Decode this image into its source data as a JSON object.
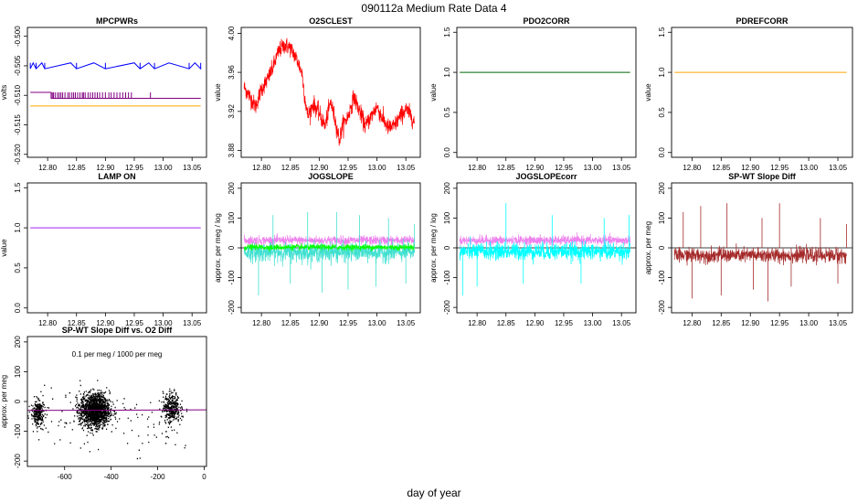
{
  "figure": {
    "title": "090112a   Medium Rate Data 4",
    "xlabel": "day of year"
  },
  "chart_data": [
    {
      "type": "line",
      "title": "MPCPWRs",
      "ylabel": "volts",
      "xlim": [
        12.765,
        13.075
      ],
      "ylim": [
        -0.5205,
        -0.4985
      ],
      "x_ticks": [
        12.8,
        12.85,
        12.9,
        12.95,
        13.0,
        13.05
      ],
      "x_tick_labels": [
        "12.80",
        "12.85",
        "12.90",
        "12.95",
        "13.00",
        "13.05"
      ],
      "y_ticks": [
        -0.52,
        -0.515,
        -0.51,
        -0.505,
        -0.5
      ],
      "y_tick_labels": [
        "-0.520",
        "-0.515",
        "-0.510",
        "-0.505",
        "-0.500"
      ],
      "series": [
        {
          "color": "#0000ff",
          "base": -0.5045,
          "alt": -0.5055,
          "style": "blue-steps",
          "x": [
            12.77,
            12.775,
            12.78,
            12.79,
            12.795,
            12.84,
            12.85,
            12.88,
            12.9,
            12.95,
            12.96,
            12.975,
            12.985,
            13.01,
            13.045,
            13.055,
            13.065
          ]
        },
        {
          "color": "#800080",
          "base": -0.5105,
          "alt": -0.5095,
          "style": "purple-spikes",
          "x": [
            12.808,
            12.81,
            12.813,
            12.817,
            12.82,
            12.823,
            12.826,
            12.83,
            12.835,
            12.838,
            12.842,
            12.845,
            12.848,
            12.852,
            12.856,
            12.86,
            12.862,
            12.865,
            12.87,
            12.874,
            12.878,
            12.882,
            12.886,
            12.89,
            12.895,
            12.9,
            12.906,
            12.91,
            12.915,
            12.92,
            12.925,
            12.93,
            12.935,
            12.94,
            12.945,
            12.978
          ]
        },
        {
          "color": "#ffa500",
          "base": -0.5118,
          "style": "flat"
        }
      ]
    },
    {
      "type": "line",
      "title": "O2SCLEST",
      "ylabel": "value",
      "xlim": [
        12.765,
        13.075
      ],
      "ylim": [
        3.873,
        4.006
      ],
      "x_ticks": [
        12.8,
        12.85,
        12.9,
        12.95,
        13.0,
        13.05
      ],
      "x_tick_labels": [
        "12.80",
        "12.85",
        "12.90",
        "12.95",
        "13.00",
        "13.05"
      ],
      "y_ticks": [
        3.88,
        3.92,
        3.96,
        4.0
      ],
      "y_tick_labels": [
        "3.88",
        "3.92",
        "3.96",
        "4.00"
      ],
      "series": [
        {
          "color": "#ff0000",
          "style": "noisy-band",
          "noise": 0.008,
          "x": [
            12.77,
            12.78,
            12.79,
            12.8,
            12.81,
            12.82,
            12.83,
            12.84,
            12.85,
            12.86,
            12.87,
            12.875,
            12.88,
            12.89,
            12.9,
            12.91,
            12.92,
            12.93,
            12.935,
            12.94,
            12.95,
            12.96,
            12.97,
            12.98,
            12.99,
            13.0,
            13.01,
            13.02,
            13.03,
            13.04,
            13.05,
            13.06,
            13.065
          ],
          "y": [
            3.945,
            3.935,
            3.925,
            3.943,
            3.952,
            3.965,
            3.982,
            3.988,
            3.985,
            3.975,
            3.96,
            3.935,
            3.915,
            3.928,
            3.918,
            3.905,
            3.93,
            3.905,
            3.89,
            3.905,
            3.915,
            3.935,
            3.92,
            3.905,
            3.915,
            3.925,
            3.912,
            3.903,
            3.905,
            3.915,
            3.922,
            3.915,
            3.908
          ]
        }
      ]
    },
    {
      "type": "line",
      "title": "PDO2CORR",
      "ylabel": "value",
      "xlim": [
        12.765,
        13.075
      ],
      "ylim": [
        -0.06,
        1.56
      ],
      "x_ticks": [
        12.8,
        12.85,
        12.9,
        12.95,
        13.0,
        13.05
      ],
      "x_tick_labels": [
        "12.80",
        "12.85",
        "12.90",
        "12.95",
        "13.00",
        "13.05"
      ],
      "y_ticks": [
        0.0,
        0.5,
        1.0,
        1.5
      ],
      "y_tick_labels": [
        "0.0",
        "0.5",
        "1.0",
        "1.5"
      ],
      "series": [
        {
          "color": "#006400",
          "style": "flat",
          "base": 1.0
        }
      ]
    },
    {
      "type": "line",
      "title": "PDREFCORR",
      "ylabel": "value",
      "xlim": [
        12.765,
        13.075
      ],
      "ylim": [
        -0.06,
        1.56
      ],
      "x_ticks": [
        12.8,
        12.85,
        12.9,
        12.95,
        13.0,
        13.05
      ],
      "x_tick_labels": [
        "12.80",
        "12.85",
        "12.90",
        "12.95",
        "13.00",
        "13.05"
      ],
      "y_ticks": [
        0.0,
        0.5,
        1.0,
        1.5
      ],
      "y_tick_labels": [
        "0.0",
        "0.5",
        "1.0",
        "1.5"
      ],
      "series": [
        {
          "color": "#ffa500",
          "style": "flat",
          "base": 1.0
        }
      ]
    },
    {
      "type": "line",
      "title": "LAMP ON",
      "ylabel": "value",
      "xlim": [
        12.765,
        13.075
      ],
      "ylim": [
        -0.06,
        1.56
      ],
      "x_ticks": [
        12.8,
        12.85,
        12.9,
        12.95,
        13.0,
        13.05
      ],
      "x_tick_labels": [
        "12.80",
        "12.85",
        "12.90",
        "12.95",
        "13.00",
        "13.05"
      ],
      "y_ticks": [
        0.0,
        0.5,
        1.0,
        1.5
      ],
      "y_tick_labels": [
        "0.0",
        "0.5",
        "1.0",
        "1.5"
      ],
      "series": [
        {
          "color": "#a020f0",
          "style": "flat",
          "base": 1.0
        }
      ]
    },
    {
      "type": "line",
      "title": "JOGSLOPE",
      "ylabel": "approx. per meg / log",
      "xlim": [
        12.765,
        13.075
      ],
      "ylim": [
        -218,
        218
      ],
      "x_ticks": [
        12.8,
        12.85,
        12.9,
        12.95,
        13.0,
        13.05
      ],
      "x_tick_labels": [
        "12.80",
        "12.85",
        "12.90",
        "12.95",
        "13.00",
        "13.05"
      ],
      "y_ticks": [
        -200,
        -100,
        0,
        100,
        200
      ],
      "y_tick_labels": [
        "-200",
        "-100",
        "0",
        "100",
        "200"
      ],
      "series": [
        {
          "color": "#ee82ee",
          "style": "noisy-band",
          "noise": 14,
          "x": [
            12.77,
            13.065
          ],
          "y": [
            25,
            25
          ]
        },
        {
          "color": "#40e0d0",
          "style": "noisy-band",
          "noise": 28,
          "x": [
            12.77,
            13.065
          ],
          "y": [
            -15,
            -15
          ]
        },
        {
          "color": "#00ff00",
          "style": "noisy-band",
          "noise": 9,
          "x": [
            12.77,
            13.065
          ],
          "y": [
            2,
            2
          ]
        }
      ],
      "spikes": {
        "color": "#40e0d0",
        "x": [
          12.795,
          12.82,
          12.85,
          12.88,
          12.905,
          12.93,
          12.95,
          12.97,
          12.998,
          13.02,
          13.05,
          13.065
        ],
        "y": [
          -160,
          110,
          -120,
          120,
          -150,
          120,
          -140,
          110,
          -130,
          100,
          -120,
          80
        ]
      },
      "reference_line": 0
    },
    {
      "type": "line",
      "title": "JOGSLOPEcorr",
      "ylabel": "approx. per meg / log",
      "xlim": [
        12.765,
        13.075
      ],
      "ylim": [
        -218,
        218
      ],
      "x_ticks": [
        12.8,
        12.85,
        12.9,
        12.95,
        13.0,
        13.05
      ],
      "x_tick_labels": [
        "12.80",
        "12.85",
        "12.90",
        "12.95",
        "13.00",
        "13.05"
      ],
      "y_ticks": [
        -200,
        -100,
        0,
        100,
        200
      ],
      "y_tick_labels": [
        "-200",
        "-100",
        "0",
        "100",
        "200"
      ],
      "series": [
        {
          "color": "#ee82ee",
          "style": "noisy-band",
          "noise": 14,
          "x": [
            12.77,
            13.065
          ],
          "y": [
            25,
            25
          ]
        },
        {
          "color": "#00ffff",
          "style": "noisy-band",
          "noise": 26,
          "x": [
            12.77,
            13.065
          ],
          "y": [
            -12,
            -12
          ]
        }
      ],
      "spikes": {
        "color": "#00ffff",
        "x": [
          12.775,
          12.8,
          12.85,
          12.88,
          12.93,
          12.98,
          13.02,
          13.063
        ],
        "y": [
          -160,
          -130,
          150,
          -120,
          110,
          -120,
          100,
          110
        ]
      },
      "reference_line": 0
    },
    {
      "type": "line",
      "title": "SP-WT Slope Diff",
      "ylabel": "approx. per meg",
      "xlim": [
        12.765,
        13.075
      ],
      "ylim": [
        -218,
        218
      ],
      "x_ticks": [
        12.8,
        12.85,
        12.9,
        12.95,
        13.0,
        13.05
      ],
      "x_tick_labels": [
        "12.80",
        "12.85",
        "12.90",
        "12.95",
        "13.00",
        "13.05"
      ],
      "y_ticks": [
        -200,
        -100,
        0,
        100,
        200
      ],
      "y_tick_labels": [
        "-200",
        "-100",
        "0",
        "100",
        "200"
      ],
      "series": [
        {
          "color": "#a52a2a",
          "style": "noisy-band",
          "noise": 22,
          "x": [
            12.77,
            13.065
          ],
          "y": [
            -25,
            -25
          ]
        }
      ],
      "spikes": {
        "color": "#a52a2a",
        "x": [
          12.785,
          12.8,
          12.815,
          12.85,
          12.86,
          12.905,
          12.92,
          12.93,
          12.95,
          12.97,
          13.02,
          13.05,
          13.065
        ],
        "y": [
          120,
          -170,
          140,
          -160,
          150,
          -140,
          100,
          -180,
          150,
          -130,
          100,
          -120,
          80
        ]
      },
      "reference_line": 0
    },
    {
      "type": "scatter",
      "title": "SP-WT Slope Diff vs. O2 Diff",
      "ylabel": "approx. per meg",
      "annotation": "0.1 per meg / 1000 per meg",
      "annotation_color": "#800080",
      "xlim": [
        -760,
        10
      ],
      "ylim": [
        -218,
        218
      ],
      "x_ticks": [
        -600,
        -400,
        -200,
        0
      ],
      "x_tick_labels": [
        "-600",
        "-400",
        "-200",
        "0"
      ],
      "y_ticks": [
        -200,
        -100,
        0,
        100,
        200
      ],
      "y_tick_labels": [
        "-200",
        "-100",
        "0",
        "100",
        "200"
      ],
      "clusters": [
        {
          "cx": -715,
          "cy": -40,
          "sx": 15,
          "sy": 22,
          "n": 260
        },
        {
          "cx": -470,
          "cy": -30,
          "sx": 32,
          "sy": 28,
          "n": 1500
        },
        {
          "cx": -140,
          "cy": -20,
          "sx": 18,
          "sy": 25,
          "n": 320
        }
      ],
      "fit_line": {
        "color": "#800080",
        "x": [
          -760,
          10
        ],
        "y": [
          -30,
          -28
        ]
      },
      "point_color": "#000000"
    }
  ]
}
